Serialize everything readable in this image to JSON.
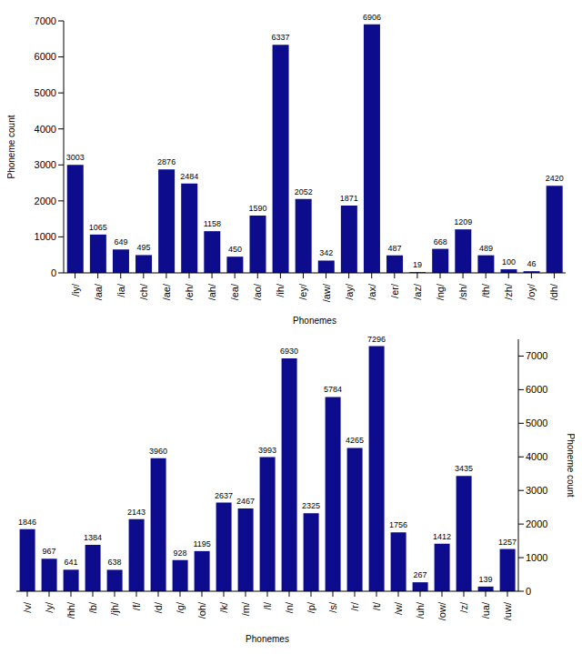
{
  "chart_data": [
    {
      "type": "bar",
      "xlabel": "Phonemes",
      "ylabel": "Phoneme count",
      "categories": [
        "/iy/",
        "/aa/",
        "/ia/",
        "/ch/",
        "/ae/",
        "/eh/",
        "/ah/",
        "/ea/",
        "/ao/",
        "/ih/",
        "/ey/",
        "/aw/",
        "/ay/",
        "/ax/",
        "/er/",
        "/az/",
        "/ng/",
        "/sh/",
        "/th/",
        "/zh/",
        "/oy/",
        "/dh/"
      ],
      "values": [
        3003,
        1065,
        649,
        495,
        2876,
        2484,
        1158,
        450,
        1590,
        6337,
        2052,
        342,
        1871,
        6906,
        487,
        19,
        668,
        1209,
        489,
        100,
        46,
        2420
      ],
      "color": "#0c0c8c",
      "ylim": [
        0,
        7000
      ],
      "yticks": [
        0,
        1000,
        2000,
        3000,
        4000,
        5000,
        6000,
        7000
      ],
      "grid": false,
      "data_labels": true
    },
    {
      "type": "bar",
      "xlabel": "Phonemes",
      "ylabel": "Phoneme count",
      "categories": [
        "/v/",
        "/y/",
        "/hh/",
        "/b/",
        "/jh/",
        "/f/",
        "/d/",
        "/g/",
        "/oh/",
        "/k/",
        "/m/",
        "/l/",
        "/n/",
        "/p/",
        "/s/",
        "/r/",
        "/t/",
        "/w/",
        "/uh/",
        "/ow/",
        "/z/",
        "/ua/",
        "/uw/"
      ],
      "values": [
        1846,
        967,
        641,
        1384,
        638,
        2143,
        3960,
        928,
        1195,
        2637,
        2467,
        3993,
        6930,
        2325,
        5784,
        4265,
        7296,
        1756,
        267,
        1412,
        3435,
        139,
        1257
      ],
      "color": "#0c0c8c",
      "ylim": [
        0,
        7500
      ],
      "yticks": [
        0,
        1000,
        2000,
        3000,
        4000,
        5000,
        6000,
        7000
      ],
      "grid": false,
      "data_labels": true
    }
  ]
}
